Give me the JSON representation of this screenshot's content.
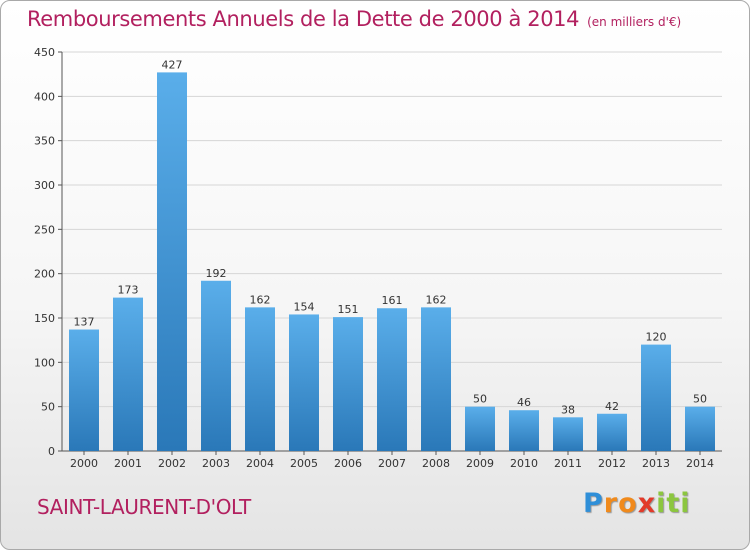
{
  "chart_data": {
    "type": "bar",
    "title": "Remboursements Annuels de la Dette de 2000 à 2014",
    "unit_note": "(en milliers d'€)",
    "categories": [
      "2000",
      "2001",
      "2002",
      "2003",
      "2004",
      "2005",
      "2006",
      "2007",
      "2008",
      "2009",
      "2010",
      "2011",
      "2012",
      "2013",
      "2014"
    ],
    "values": [
      137,
      173,
      427,
      192,
      162,
      154,
      151,
      161,
      162,
      50,
      46,
      38,
      42,
      120,
      50
    ],
    "ylim": [
      0,
      450
    ],
    "yticks": [
      0,
      50,
      100,
      150,
      200,
      250,
      300,
      350,
      400,
      450
    ],
    "grid": true,
    "bar_color_top": "#5aaeea",
    "bar_color_bottom": "#2a78b8"
  },
  "footer": {
    "town": "SAINT-LAURENT-D'OLT",
    "logo_letters": [
      "P",
      "r",
      "o",
      "x",
      "i",
      "t",
      "i"
    ],
    "logo_colors": [
      "#2f8fd8",
      "#f08a1c",
      "#f08a1c",
      "#e23a2a",
      "#8cc63f",
      "#8cc63f",
      "#8cc63f"
    ]
  }
}
